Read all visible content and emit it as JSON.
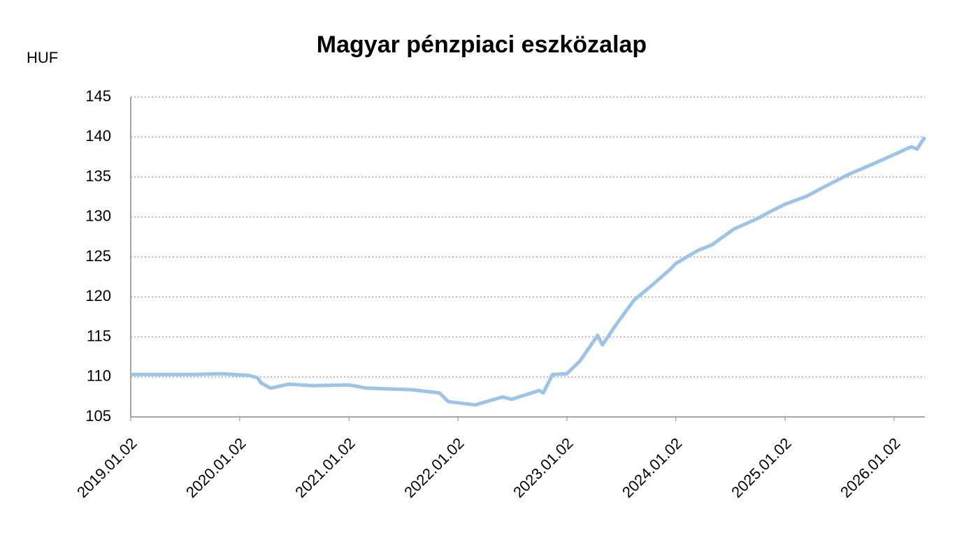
{
  "chart_data": {
    "type": "line",
    "title": "Magyar pénzpiaci eszközalap",
    "y_label": "HUF",
    "x": [
      "2019.01.02",
      "2019.04.01",
      "2019.08.01",
      "2019.11.01",
      "2020.02.01",
      "2020.03.01",
      "2020.03.15",
      "2020.04.15",
      "2020.06.15",
      "2020.09.01",
      "2021.01.02",
      "2021.03.01",
      "2021.08.01",
      "2021.11.01",
      "2021.12.01",
      "2022.03.01",
      "2022.06.01",
      "2022.07.01",
      "2022.10.01",
      "2022.10.15",
      "2022.11.15",
      "2023.01.02",
      "2023.02.01",
      "2023.02.15",
      "2023.04.15",
      "2023.05.01",
      "2023.06.15",
      "2023.08.15",
      "2023.10.15",
      "2023.12.15",
      "2024.01.02",
      "2024.03.15",
      "2024.05.01",
      "2024.07.15",
      "2024.10.01",
      "2024.11.15",
      "2025.01.02",
      "2025.03.15",
      "2025.05.15",
      "2025.08.01",
      "2025.10.15",
      "2026.01.02",
      "2026.03.01",
      "2026.03.20",
      "2026.04.15"
    ],
    "series": [
      {
        "name": "Magyar pénzpiaci eszközalap",
        "color": "#9dc3e6",
        "values": [
          110.3,
          110.3,
          110.3,
          110.4,
          110.2,
          109.9,
          109.2,
          108.6,
          109.1,
          108.9,
          109.0,
          108.6,
          108.4,
          108.0,
          106.9,
          106.5,
          107.5,
          107.2,
          108.3,
          108.0,
          110.3,
          110.4,
          111.5,
          112.0,
          115.2,
          114.0,
          116.5,
          119.6,
          121.5,
          123.5,
          124.2,
          125.8,
          126.5,
          128.5,
          129.8,
          130.7,
          131.6,
          132.6,
          133.8,
          135.3,
          136.5,
          137.8,
          138.8,
          138.5,
          140.0
        ]
      }
    ],
    "xlim": [
      "2019.01.02",
      "2026.04.15"
    ],
    "xticks": [
      "2019.01.02",
      "2020.01.02",
      "2021.01.02",
      "2022.01.02",
      "2023.01.02",
      "2024.01.02",
      "2025.01.02",
      "2026.01.02"
    ],
    "ylim": [
      105,
      145
    ],
    "yticks": [
      105,
      110,
      115,
      120,
      125,
      130,
      135,
      140,
      145
    ],
    "grid": true
  }
}
